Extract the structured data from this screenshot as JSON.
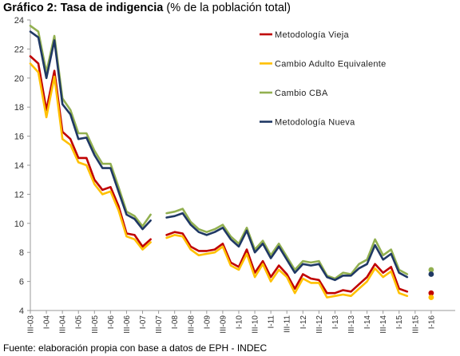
{
  "title_bold": "Gráfico 2: Tasa de indigencia",
  "title_rest": " (% de la población total)",
  "source": "Fuente: elaboración propia con base a datos de EPH - INDEC",
  "chart_data": {
    "type": "line",
    "ylim": [
      4,
      24
    ],
    "yticks": [
      4,
      6,
      8,
      10,
      12,
      14,
      16,
      18,
      20,
      22,
      24
    ],
    "x_range": [
      2003.5,
      2016.75
    ],
    "xticks": [
      {
        "label": "III-03",
        "x": 2003.5
      },
      {
        "label": "I-04",
        "x": 2004.0
      },
      {
        "label": "III-04",
        "x": 2004.5
      },
      {
        "label": "I-05",
        "x": 2005.0
      },
      {
        "label": "III-05",
        "x": 2005.5
      },
      {
        "label": "I-06",
        "x": 2006.0
      },
      {
        "label": "III-06",
        "x": 2006.5
      },
      {
        "label": "I-07",
        "x": 2007.0
      },
      {
        "label": "III-07",
        "x": 2007.5
      },
      {
        "label": "I-08",
        "x": 2008.0
      },
      {
        "label": "III-08",
        "x": 2008.5
      },
      {
        "label": "I-09",
        "x": 2009.0
      },
      {
        "label": "III-09",
        "x": 2009.5
      },
      {
        "label": "I-10",
        "x": 2010.0
      },
      {
        "label": "III-10",
        "x": 2010.5
      },
      {
        "label": "I-11",
        "x": 2011.0
      },
      {
        "label": "III-11",
        "x": 2011.5
      },
      {
        "label": "I-12",
        "x": 2012.0
      },
      {
        "label": "III-12",
        "x": 2012.5
      },
      {
        "label": "I-13",
        "x": 2013.0
      },
      {
        "label": "III-13",
        "x": 2013.5
      },
      {
        "label": "I-14",
        "x": 2014.0
      },
      {
        "label": "III-14",
        "x": 2014.5
      },
      {
        "label": "I-15",
        "x": 2015.0
      },
      {
        "label": "III-15",
        "x": 2015.5
      },
      {
        "label": "I-16",
        "x": 2016.0
      }
    ],
    "series": [
      {
        "name": "Metodología Vieja",
        "color": "#c00000",
        "segments": [
          [
            [
              2003.5,
              21.5
            ],
            [
              2003.75,
              21.0
            ],
            [
              2004.0,
              17.8
            ],
            [
              2004.25,
              20.5
            ],
            [
              2004.5,
              16.3
            ],
            [
              2004.75,
              15.8
            ],
            [
              2005.0,
              14.5
            ],
            [
              2005.25,
              14.5
            ],
            [
              2005.5,
              13.0
            ],
            [
              2005.75,
              12.3
            ],
            [
              2006.0,
              12.5
            ],
            [
              2006.25,
              11.2
            ],
            [
              2006.5,
              9.3
            ],
            [
              2006.75,
              9.2
            ],
            [
              2007.0,
              8.4
            ],
            [
              2007.25,
              8.9
            ]
          ],
          [
            [
              2007.75,
              9.2
            ],
            [
              2008.0,
              9.4
            ],
            [
              2008.25,
              9.3
            ],
            [
              2008.5,
              8.4
            ],
            [
              2008.75,
              8.1
            ],
            [
              2009.0,
              8.1
            ],
            [
              2009.25,
              8.2
            ],
            [
              2009.5,
              8.6
            ],
            [
              2009.75,
              7.3
            ],
            [
              2010.0,
              7.0
            ],
            [
              2010.25,
              8.2
            ],
            [
              2010.5,
              6.6
            ],
            [
              2010.75,
              7.4
            ],
            [
              2011.0,
              6.3
            ],
            [
              2011.25,
              7.1
            ],
            [
              2011.5,
              6.5
            ],
            [
              2011.75,
              5.5
            ],
            [
              2012.0,
              6.5
            ],
            [
              2012.25,
              6.2
            ],
            [
              2012.5,
              6.1
            ],
            [
              2012.75,
              5.2
            ],
            [
              2013.0,
              5.2
            ],
            [
              2013.25,
              5.4
            ],
            [
              2013.5,
              5.3
            ],
            [
              2013.75,
              5.8
            ],
            [
              2014.0,
              6.3
            ],
            [
              2014.25,
              7.2
            ],
            [
              2014.5,
              6.6
            ],
            [
              2014.75,
              7.0
            ],
            [
              2015.0,
              5.5
            ],
            [
              2015.25,
              5.3
            ]
          ]
        ],
        "last_point": [
          2016.0,
          5.2
        ]
      },
      {
        "name": "Cambio Adulto Equivalente",
        "color": "#ffc000",
        "segments": [
          [
            [
              2003.5,
              21.0
            ],
            [
              2003.75,
              20.4
            ],
            [
              2004.0,
              17.3
            ],
            [
              2004.25,
              20.1
            ],
            [
              2004.5,
              15.8
            ],
            [
              2004.75,
              15.4
            ],
            [
              2005.0,
              14.2
            ],
            [
              2005.25,
              14.0
            ],
            [
              2005.5,
              12.7
            ],
            [
              2005.75,
              12.0
            ],
            [
              2006.0,
              12.2
            ],
            [
              2006.25,
              10.9
            ],
            [
              2006.5,
              9.1
            ],
            [
              2006.75,
              8.9
            ],
            [
              2007.0,
              8.2
            ],
            [
              2007.25,
              8.7
            ]
          ],
          [
            [
              2007.75,
              9.0
            ],
            [
              2008.0,
              9.2
            ],
            [
              2008.25,
              9.1
            ],
            [
              2008.5,
              8.2
            ],
            [
              2008.75,
              7.8
            ],
            [
              2009.0,
              7.9
            ],
            [
              2009.25,
              8.0
            ],
            [
              2009.5,
              8.4
            ],
            [
              2009.75,
              7.1
            ],
            [
              2010.0,
              6.8
            ],
            [
              2010.25,
              7.9
            ],
            [
              2010.5,
              6.3
            ],
            [
              2010.75,
              7.2
            ],
            [
              2011.0,
              6.0
            ],
            [
              2011.25,
              6.8
            ],
            [
              2011.5,
              6.3
            ],
            [
              2011.75,
              5.2
            ],
            [
              2012.0,
              6.2
            ],
            [
              2012.25,
              5.9
            ],
            [
              2012.5,
              5.9
            ],
            [
              2012.75,
              4.9
            ],
            [
              2013.0,
              5.0
            ],
            [
              2013.25,
              5.1
            ],
            [
              2013.5,
              5.0
            ],
            [
              2013.75,
              5.5
            ],
            [
              2014.0,
              6.0
            ],
            [
              2014.25,
              6.9
            ],
            [
              2014.5,
              6.3
            ],
            [
              2014.75,
              6.7
            ],
            [
              2015.0,
              5.2
            ],
            [
              2015.25,
              5.0
            ]
          ]
        ],
        "last_point": [
          2016.0,
          4.9
        ]
      },
      {
        "name": "Cambio CBA",
        "color": "#92b050",
        "segments": [
          [
            [
              2003.5,
              23.6
            ],
            [
              2003.75,
              23.2
            ],
            [
              2004.0,
              20.4
            ],
            [
              2004.25,
              22.9
            ],
            [
              2004.5,
              18.6
            ],
            [
              2004.75,
              17.8
            ],
            [
              2005.0,
              16.2
            ],
            [
              2005.25,
              16.2
            ],
            [
              2005.5,
              15.0
            ],
            [
              2005.75,
              14.1
            ],
            [
              2006.0,
              14.1
            ],
            [
              2006.25,
              12.5
            ],
            [
              2006.5,
              10.8
            ],
            [
              2006.75,
              10.5
            ],
            [
              2007.0,
              9.8
            ],
            [
              2007.25,
              10.6
            ]
          ],
          [
            [
              2007.75,
              10.7
            ],
            [
              2008.0,
              10.8
            ],
            [
              2008.25,
              11.0
            ],
            [
              2008.5,
              10.1
            ],
            [
              2008.75,
              9.6
            ],
            [
              2009.0,
              9.4
            ],
            [
              2009.25,
              9.6
            ],
            [
              2009.5,
              9.9
            ],
            [
              2009.75,
              9.1
            ],
            [
              2010.0,
              8.6
            ],
            [
              2010.25,
              9.7
            ],
            [
              2010.5,
              8.2
            ],
            [
              2010.75,
              8.8
            ],
            [
              2011.0,
              7.8
            ],
            [
              2011.25,
              8.6
            ],
            [
              2011.5,
              7.7
            ],
            [
              2011.75,
              6.8
            ],
            [
              2012.0,
              7.4
            ],
            [
              2012.25,
              7.3
            ],
            [
              2012.5,
              7.4
            ],
            [
              2012.75,
              6.4
            ],
            [
              2013.0,
              6.2
            ],
            [
              2013.25,
              6.6
            ],
            [
              2013.5,
              6.5
            ],
            [
              2013.75,
              7.2
            ],
            [
              2014.0,
              7.5
            ],
            [
              2014.25,
              8.9
            ],
            [
              2014.5,
              7.8
            ],
            [
              2014.75,
              8.2
            ],
            [
              2015.0,
              6.8
            ],
            [
              2015.25,
              6.5
            ]
          ]
        ],
        "last_point": [
          2016.0,
          6.8
        ]
      },
      {
        "name": "Metodología Nueva",
        "color": "#1f3864",
        "segments": [
          [
            [
              2003.5,
              23.2
            ],
            [
              2003.75,
              22.8
            ],
            [
              2004.0,
              20.0
            ],
            [
              2004.25,
              22.6
            ],
            [
              2004.5,
              18.2
            ],
            [
              2004.75,
              17.5
            ],
            [
              2005.0,
              15.8
            ],
            [
              2005.25,
              15.9
            ],
            [
              2005.5,
              14.7
            ],
            [
              2005.75,
              13.8
            ],
            [
              2006.0,
              13.8
            ],
            [
              2006.25,
              12.2
            ],
            [
              2006.5,
              10.6
            ],
            [
              2006.75,
              10.3
            ],
            [
              2007.0,
              9.6
            ],
            [
              2007.25,
              10.2
            ]
          ],
          [
            [
              2007.75,
              10.4
            ],
            [
              2008.0,
              10.5
            ],
            [
              2008.25,
              10.7
            ],
            [
              2008.5,
              9.9
            ],
            [
              2008.75,
              9.4
            ],
            [
              2009.0,
              9.2
            ],
            [
              2009.25,
              9.4
            ],
            [
              2009.5,
              9.7
            ],
            [
              2009.75,
              8.9
            ],
            [
              2010.0,
              8.4
            ],
            [
              2010.25,
              9.5
            ],
            [
              2010.5,
              8.0
            ],
            [
              2010.75,
              8.6
            ],
            [
              2011.0,
              7.6
            ],
            [
              2011.25,
              8.4
            ],
            [
              2011.5,
              7.5
            ],
            [
              2011.75,
              6.6
            ],
            [
              2012.0,
              7.2
            ],
            [
              2012.25,
              7.1
            ],
            [
              2012.5,
              7.2
            ],
            [
              2012.75,
              6.3
            ],
            [
              2013.0,
              6.1
            ],
            [
              2013.25,
              6.4
            ],
            [
              2013.5,
              6.4
            ],
            [
              2013.75,
              6.9
            ],
            [
              2014.0,
              7.2
            ],
            [
              2014.25,
              8.5
            ],
            [
              2014.5,
              7.5
            ],
            [
              2014.75,
              7.9
            ],
            [
              2015.0,
              6.6
            ],
            [
              2015.25,
              6.3
            ]
          ]
        ],
        "last_point": [
          2016.0,
          6.5
        ]
      }
    ],
    "legend_position": "top-right",
    "grid": false
  }
}
